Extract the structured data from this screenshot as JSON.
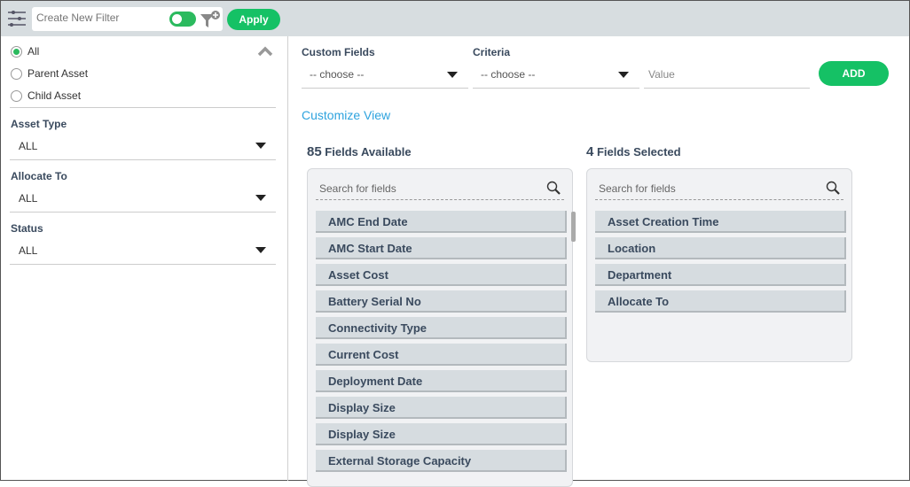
{
  "topbar": {
    "filter_placeholder": "Create New Filter",
    "apply_label": "Apply",
    "toggle_on": true
  },
  "sidebar": {
    "radios": [
      {
        "label": "All",
        "checked": true
      },
      {
        "label": "Parent Asset",
        "checked": false
      },
      {
        "label": "Child Asset",
        "checked": false
      }
    ],
    "filters": [
      {
        "label": "Asset Type",
        "value": "ALL"
      },
      {
        "label": "Allocate To",
        "value": "ALL"
      },
      {
        "label": "Status",
        "value": "ALL"
      }
    ]
  },
  "main": {
    "custom_fields_label": "Custom Fields",
    "custom_fields_value": "-- choose --",
    "criteria_label": "Criteria",
    "criteria_value": "-- choose --",
    "value_placeholder": "Value",
    "add_label": "ADD",
    "customize_view": "Customize View",
    "available": {
      "count": "85",
      "label": " Fields Available",
      "search_placeholder": "Search for fields",
      "items": [
        "AMC End Date",
        "AMC Start Date",
        "Asset Cost",
        "Battery Serial No",
        "Connectivity Type",
        "Current Cost",
        "Deployment Date",
        "Display Size",
        "Display Size",
        "External Storage Capacity"
      ]
    },
    "selected": {
      "count": "4",
      "label": " Fields Selected",
      "search_placeholder": "Search for fields",
      "items": [
        "Asset Creation Time",
        "Location",
        "Department",
        "Allocate To"
      ]
    }
  },
  "colors": {
    "accent": "#15c165",
    "link": "#2ea3de"
  }
}
